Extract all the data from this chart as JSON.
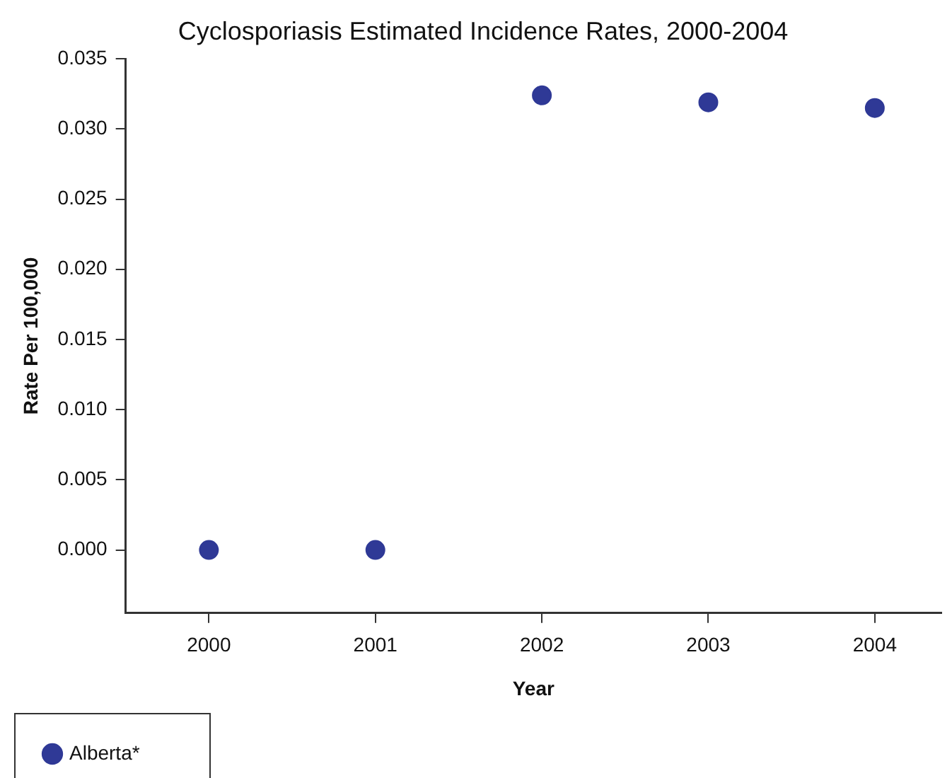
{
  "chart_data": {
    "type": "scatter",
    "title": "Cyclosporiasis Estimated Incidence Rates, 2000-2004",
    "xlabel": "Year",
    "ylabel": "Rate Per 100,000",
    "x": [
      2000,
      2001,
      2002,
      2003,
      2004
    ],
    "series": [
      {
        "name": "Alberta*",
        "color": "#2f3996",
        "values": [
          0,
          0,
          0.0324,
          0.0319,
          0.0315
        ]
      }
    ],
    "xlim": [
      1999.5,
      2004.4
    ],
    "xticks": [
      2000,
      2001,
      2002,
      2003,
      2004
    ],
    "ylim": [
      -0.0045,
      0.035
    ],
    "yticks": [
      {
        "value": 0,
        "label": "0.000"
      },
      {
        "value": 0.005,
        "label": "0.005"
      },
      {
        "value": 0.01,
        "label": "0.010"
      },
      {
        "value": 0.015,
        "label": "0.015"
      },
      {
        "value": 0.02,
        "label": "0.020"
      },
      {
        "value": 0.025,
        "label": "0.025"
      },
      {
        "value": 0.03,
        "label": "0.030"
      },
      {
        "value": 0.035,
        "label": "0.035"
      }
    ],
    "grid": false,
    "legend": "bottom left",
    "marker": "circle"
  }
}
